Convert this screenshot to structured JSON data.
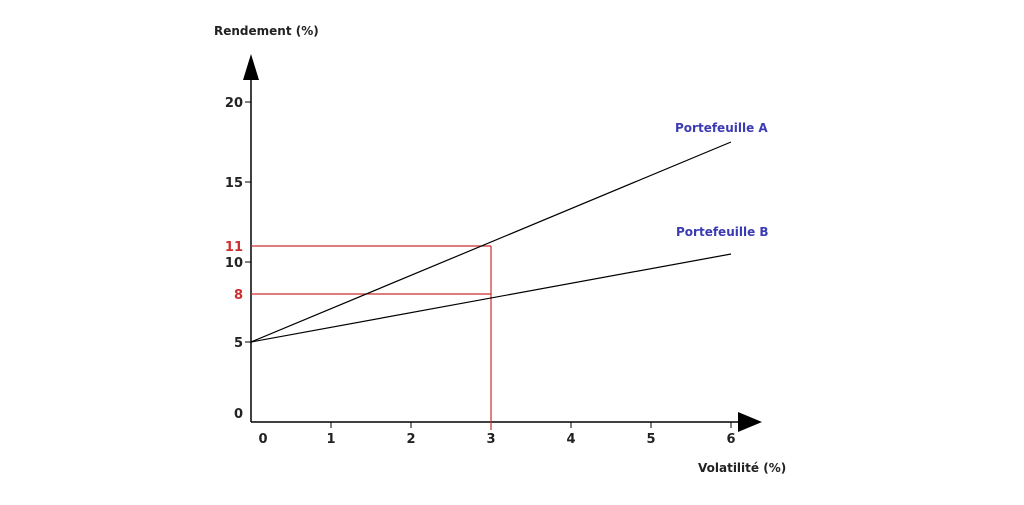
{
  "chart_data": {
    "type": "line",
    "xlabel": "Volatilité (%)",
    "ylabel": "Rendement (%)",
    "xlim": [
      0,
      6
    ],
    "ylim": [
      0,
      20
    ],
    "x_ticks": [
      "0",
      "1",
      "2",
      "3",
      "4",
      "5",
      "6"
    ],
    "y_ticks": [
      "0",
      "5",
      "10",
      "15",
      "20"
    ],
    "grid": false,
    "series": [
      {
        "name": "Portefeuille A",
        "x": [
          0,
          6
        ],
        "y": [
          5,
          17.5
        ]
      },
      {
        "name": "Portefeuille B",
        "x": [
          0,
          6
        ],
        "y": [
          5,
          10.5
        ]
      }
    ],
    "reference_lines": {
      "x": 3,
      "y_values": [
        11,
        8
      ],
      "labels": [
        "11",
        "8"
      ]
    },
    "colors": {
      "axis": "#000000",
      "series": "#000000",
      "series_label": "#3b3bb3",
      "reference": "#cc2f2f"
    }
  }
}
